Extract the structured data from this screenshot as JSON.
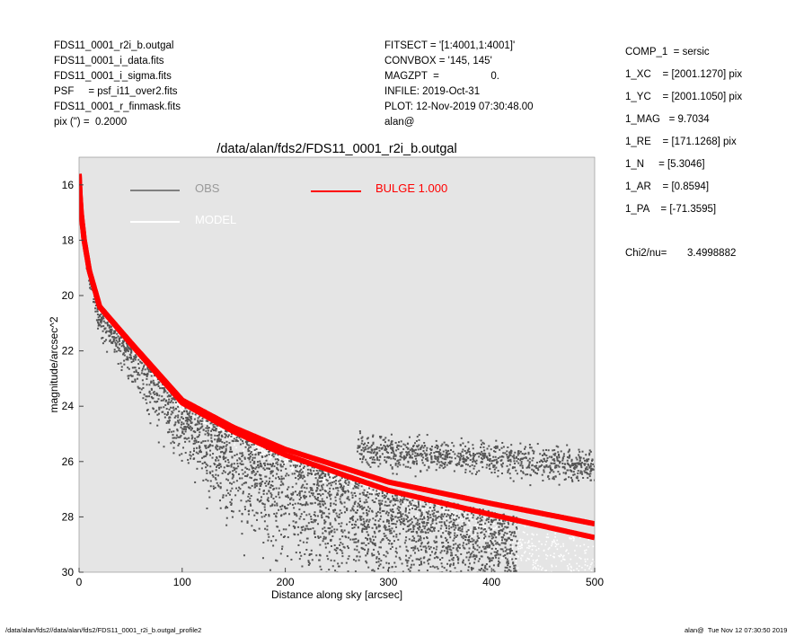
{
  "header_left": [
    "FDS11_0001_r2i_b.outgal",
    "FDS11_0001_i_data.fits",
    "FDS11_0001_i_sigma.fits",
    "PSF     = psf_i11_over2.fits",
    "FDS11_0001_r_finmask.fits",
    "pix (\") =  0.2000"
  ],
  "header_mid": [
    "FITSECT = '[1:4001,1:4001]'",
    "CONVBOX = '145, 145'",
    "MAGZPT  =                  0.",
    "INFILE: 2019-Oct-31",
    "PLOT: 12-Nov-2019 07:30:48.00",
    "alan@"
  ],
  "params": [
    "COMP_1  = sersic",
    "1_XC    = [2001.1270] pix",
    "1_YC    = [2001.1050] pix",
    "1_MAG   = 9.7034",
    "1_RE    = [171.1268] pix",
    "1_N     = [5.3046]",
    "1_AR    = [0.8594]",
    "1_PA    = [-71.3595]"
  ],
  "chi2": {
    "label": "Chi2/nu=",
    "value": "3.4998882"
  },
  "footer": {
    "left": "/data/alan/fds2//data/alan/fds2/FDS11_0001_r2i_b.outgal_profile2",
    "right": "alan@  Tue Nov 12 07:30:50 2019"
  },
  "colors": {
    "bg": "#e5e5e5",
    "obs": "#555555",
    "model": "#ffffff",
    "bulge": "#ff0000"
  },
  "chart_data": {
    "type": "scatter",
    "title": "/data/alan/fds2/FDS11_0001_r2i_b.outgal",
    "xlabel": "Distance along sky [arcsec]",
    "ylabel": "magnitude/arcsec^2",
    "xlim": [
      0,
      500
    ],
    "ylim": [
      30,
      15
    ],
    "y_inverted": true,
    "xticks": [
      "0",
      "100",
      "200",
      "300",
      "400",
      "500"
    ],
    "yticks": [
      "16",
      "18",
      "20",
      "22",
      "24",
      "26",
      "28",
      "30"
    ],
    "legend": [
      {
        "label": "OBS",
        "color": "#808080"
      },
      {
        "label": "MODEL",
        "color": "#ffffff"
      },
      {
        "label": "BULGE  1.000",
        "color": "#ff0000"
      }
    ],
    "bulge_profile": {
      "x": [
        0,
        1,
        2,
        5,
        10,
        20,
        50,
        100,
        150,
        200,
        300,
        400,
        500
      ],
      "mag": [
        15.6,
        16.4,
        17.0,
        18.0,
        19.1,
        20.4,
        21.7,
        23.8,
        24.8,
        25.6,
        26.8,
        27.6,
        28.35
      ]
    }
  }
}
